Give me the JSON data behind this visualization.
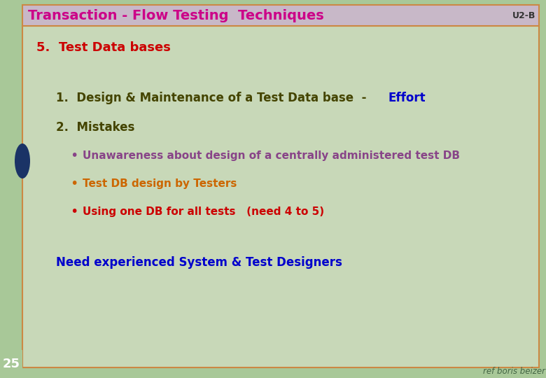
{
  "title": "Transaction - Flow Testing  Techniques",
  "title_color": "#CC0088",
  "title_bg_color": "#C8B8C8",
  "top_right_label": "U2-B",
  "top_right_color": "#333333",
  "outer_bg_color": "#A8C898",
  "inner_bg_color": "#C8D8B8",
  "border_color": "#CC8844",
  "left_panel_color": "#A8C898",
  "dark_circle_color": "#1A3366",
  "section_heading": "5.  Test Data bases",
  "section_heading_color": "#CC0000",
  "item1_text": "1.  Design & Maintenance of a Test Data base  - ",
  "item1_effort": "Effort",
  "item1_color": "#444400",
  "item1_effort_color": "#0000CC",
  "item2": "2.  Mistakes",
  "item2_color": "#444400",
  "bullet1": "Unawareness about design of a centrally administered test DB",
  "bullet1_color": "#884488",
  "bullet2": "Test DB design by Testers",
  "bullet2_color": "#CC6600",
  "bullet3": "Using one DB for all tests   (need 4 to 5)",
  "bullet3_color": "#CC0000",
  "footer_text": "Need experienced System & Test Designers",
  "footer_color": "#0000CC",
  "page_num": "25",
  "page_num_color": "#FFFFFF",
  "ref_text": "ref boris beizer",
  "ref_color": "#446644",
  "fig_width": 7.8,
  "fig_height": 5.4,
  "dpi": 100
}
